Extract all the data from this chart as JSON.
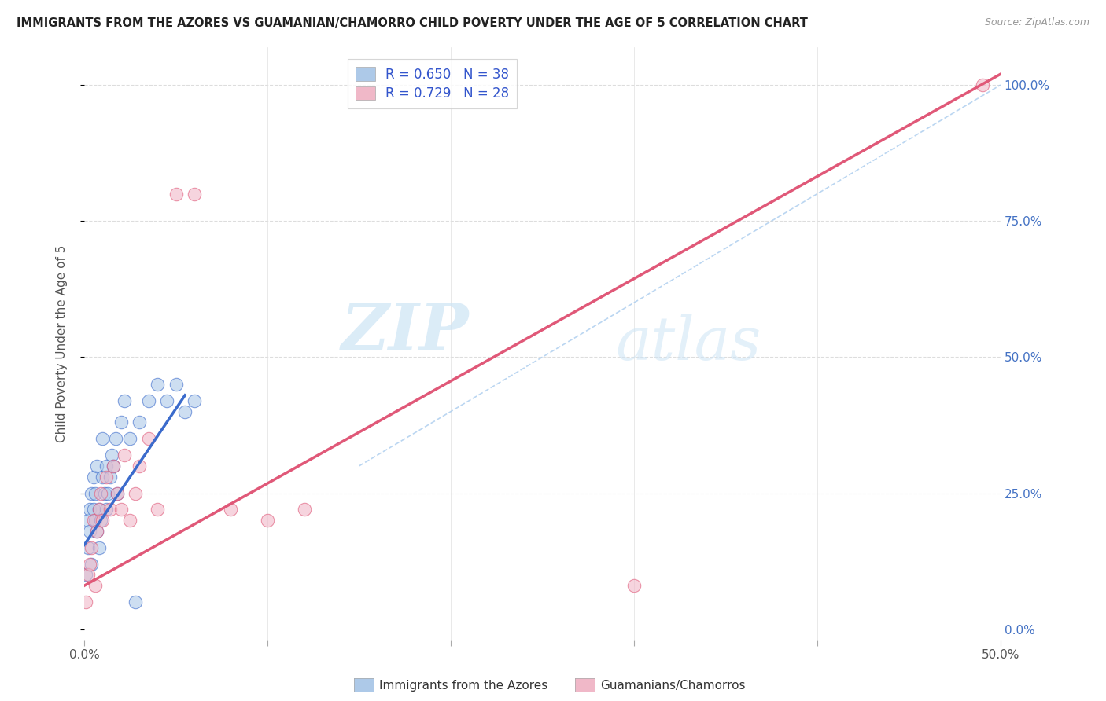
{
  "title": "IMMIGRANTS FROM THE AZORES VS GUAMANIAN/CHAMORRO CHILD POVERTY UNDER THE AGE OF 5 CORRELATION CHART",
  "source": "Source: ZipAtlas.com",
  "ylabel": "Child Poverty Under the Age of 5",
  "xlim": [
    0.0,
    0.5
  ],
  "ylim": [
    -0.02,
    1.07
  ],
  "blue_R": 0.65,
  "blue_N": 38,
  "pink_R": 0.729,
  "pink_N": 28,
  "blue_color": "#adc9e8",
  "blue_line_color": "#3b6bcc",
  "pink_color": "#f0b8c8",
  "pink_line_color": "#e05878",
  "legend_label_blue": "Immigrants from the Azores",
  "legend_label_pink": "Guamanians/Chamorros",
  "watermark_zip": "ZIP",
  "watermark_atlas": "atlas",
  "background_color": "#ffffff",
  "blue_scatter_x": [
    0.001,
    0.002,
    0.002,
    0.003,
    0.003,
    0.004,
    0.004,
    0.005,
    0.005,
    0.006,
    0.006,
    0.007,
    0.007,
    0.008,
    0.008,
    0.009,
    0.01,
    0.01,
    0.011,
    0.012,
    0.012,
    0.013,
    0.014,
    0.015,
    0.016,
    0.017,
    0.018,
    0.02,
    0.022,
    0.025,
    0.028,
    0.03,
    0.035,
    0.04,
    0.045,
    0.05,
    0.055,
    0.06
  ],
  "blue_scatter_y": [
    0.1,
    0.15,
    0.2,
    0.22,
    0.18,
    0.25,
    0.12,
    0.22,
    0.28,
    0.2,
    0.25,
    0.18,
    0.3,
    0.15,
    0.22,
    0.2,
    0.28,
    0.35,
    0.25,
    0.22,
    0.3,
    0.25,
    0.28,
    0.32,
    0.3,
    0.35,
    0.25,
    0.38,
    0.42,
    0.35,
    0.05,
    0.38,
    0.42,
    0.45,
    0.42,
    0.45,
    0.4,
    0.42
  ],
  "pink_scatter_x": [
    0.001,
    0.002,
    0.003,
    0.004,
    0.005,
    0.006,
    0.007,
    0.008,
    0.009,
    0.01,
    0.012,
    0.014,
    0.016,
    0.018,
    0.02,
    0.022,
    0.025,
    0.028,
    0.03,
    0.035,
    0.04,
    0.05,
    0.06,
    0.08,
    0.1,
    0.12,
    0.3,
    0.49
  ],
  "pink_scatter_y": [
    0.05,
    0.1,
    0.12,
    0.15,
    0.2,
    0.08,
    0.18,
    0.22,
    0.25,
    0.2,
    0.28,
    0.22,
    0.3,
    0.25,
    0.22,
    0.32,
    0.2,
    0.25,
    0.3,
    0.35,
    0.22,
    0.8,
    0.8,
    0.22,
    0.2,
    0.22,
    0.08,
    1.0
  ],
  "blue_line_x": [
    0.0,
    0.055
  ],
  "blue_line_y": [
    0.155,
    0.43
  ],
  "pink_line_x": [
    0.0,
    0.5
  ],
  "pink_line_y": [
    0.08,
    1.02
  ],
  "diag_line_x": [
    0.15,
    0.5
  ],
  "diag_line_y": [
    0.3,
    1.0
  ]
}
